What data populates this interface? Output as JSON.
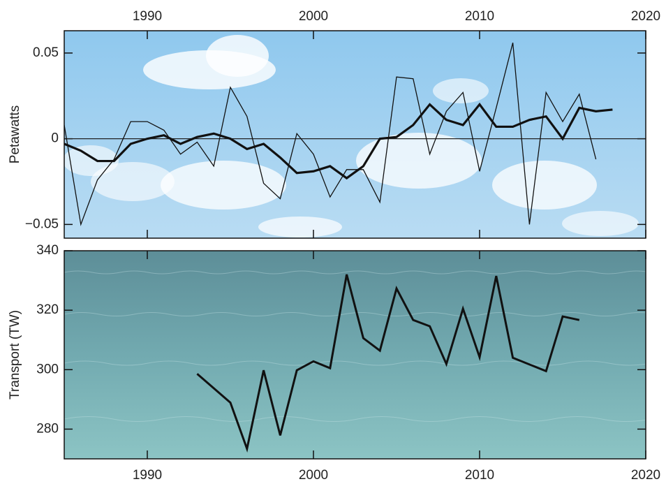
{
  "chart_data": [
    {
      "type": "line",
      "y_label": "Petawatts",
      "xaxis": "top",
      "zero_line": true,
      "x": [
        1985,
        1986,
        1987,
        1988,
        1989,
        1990,
        1991,
        1992,
        1993,
        1994,
        1995,
        1996,
        1997,
        1998,
        1999,
        2000,
        2001,
        2002,
        2003,
        2004,
        2005,
        2006,
        2007,
        2008,
        2009,
        2010,
        2011,
        2012,
        2013,
        2014,
        2015,
        2016,
        2017,
        2018
      ],
      "series": [
        {
          "color": "#111111",
          "line_width": 1.3,
          "values": [
            0.008,
            -0.05,
            -0.024,
            -0.012,
            0.01,
            0.01,
            0.005,
            -0.009,
            -0.002,
            -0.016,
            0.03,
            0.013,
            -0.026,
            -0.035,
            0.003,
            -0.009,
            -0.034,
            -0.018,
            -0.018,
            -0.037,
            0.036,
            0.035,
            -0.009,
            0.016,
            0.027,
            -0.019,
            0.018,
            0.056,
            -0.05,
            0.027,
            0.01,
            0.026,
            -0.012,
            null
          ]
        },
        {
          "color": "#111111",
          "line_width": 3.2,
          "values": [
            -0.003,
            -0.007,
            -0.013,
            -0.013,
            -0.003,
            0.0,
            0.002,
            -0.003,
            0.001,
            0.003,
            0.0,
            -0.006,
            -0.003,
            -0.011,
            -0.02,
            -0.019,
            -0.016,
            -0.023,
            -0.016,
            0.0,
            0.001,
            0.008,
            0.02,
            0.011,
            0.008,
            0.02,
            0.007,
            0.007,
            0.011,
            0.013,
            0.0,
            0.018,
            0.016,
            0.017
          ]
        }
      ],
      "xlim": [
        1985,
        2020
      ],
      "xticks": [
        1990,
        2000,
        2010,
        2020
      ],
      "ylim": [
        -0.058,
        0.063
      ],
      "yticks": [
        0.05,
        0,
        {
          "value": -0.05,
          "label": "−0.05"
        }
      ]
    },
    {
      "type": "line",
      "y_label": "Transport (TW)",
      "xaxis": "bottom",
      "zero_line": false,
      "x": [
        1993,
        1995,
        1996,
        1997,
        1998,
        1999,
        2000,
        2001,
        2002,
        2003,
        2004,
        2005,
        2006,
        2007,
        2008,
        2009,
        2010,
        2011,
        2012,
        2014,
        2015,
        2016
      ],
      "series": [
        {
          "color": "#111111",
          "line_width": 3,
          "values": [
            298.6,
            288.9,
            273.4,
            299.8,
            277.9,
            299.8,
            302.8,
            300.5,
            332.0,
            310.6,
            306.4,
            327.3,
            316.7,
            314.6,
            301.9,
            320.5,
            304.2,
            331.5,
            304.0,
            299.5,
            317.9,
            316.7
          ]
        }
      ],
      "xlim": [
        1985,
        2020
      ],
      "xticks": [
        1990,
        2000,
        2010,
        2020
      ],
      "ylim": [
        270,
        340
      ],
      "yticks": [
        340,
        320,
        300,
        280
      ]
    }
  ]
}
